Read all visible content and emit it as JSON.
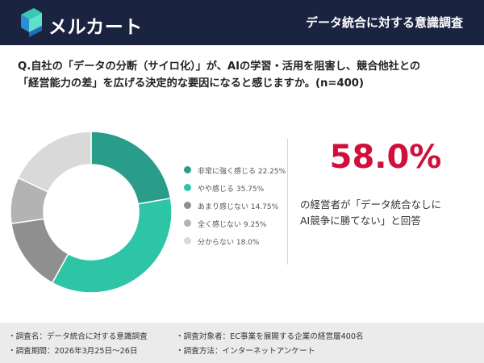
{
  "header": {
    "logo_text": "メルカート",
    "logo_icon": "mercart-logo-icon",
    "title": "データ統合に対する意識調査",
    "bg_color": "#1a2340"
  },
  "question": {
    "line1": "Q.自社の「データの分断（サイロ化）」が、AIの学習・活用を阻害し、競合他社との",
    "line2": "「経営能力の差」を広げる決定的な要因になると感じますか。(n=400)"
  },
  "chart_data": {
    "type": "pie",
    "donut": true,
    "categories": [
      "非常に強く感じる",
      "やや感じる",
      "あまり感じない",
      "全く感じない",
      "分からない"
    ],
    "values": [
      22.25,
      35.75,
      14.75,
      9.25,
      18.0
    ],
    "colors": [
      "#2a9d8a",
      "#2ec4a6",
      "#8f8f8f",
      "#b3b3b3",
      "#d9d9d9"
    ],
    "legend_labels": [
      "非常に強く感じる 22.25%",
      "やや感じる 35.75%",
      "あまり感じない 14.75%",
      "全く感じない 9.25%",
      "分からない 18.0%"
    ],
    "legend_position": "right"
  },
  "highlight": {
    "value": "58.0%",
    "color": "#d0103a",
    "caption_line1": "の経営者が「データ統合なしに",
    "caption_line2": "AI競争に勝てない」と回答"
  },
  "footer": {
    "name": "・調査名：データ統合に対する意識調査",
    "target": "・調査対象者：EC事業を展開する企業の経営層400名",
    "period": "・調査期間：2026年3月25日〜26日",
    "method": "・調査方法：インターネットアンケート"
  }
}
